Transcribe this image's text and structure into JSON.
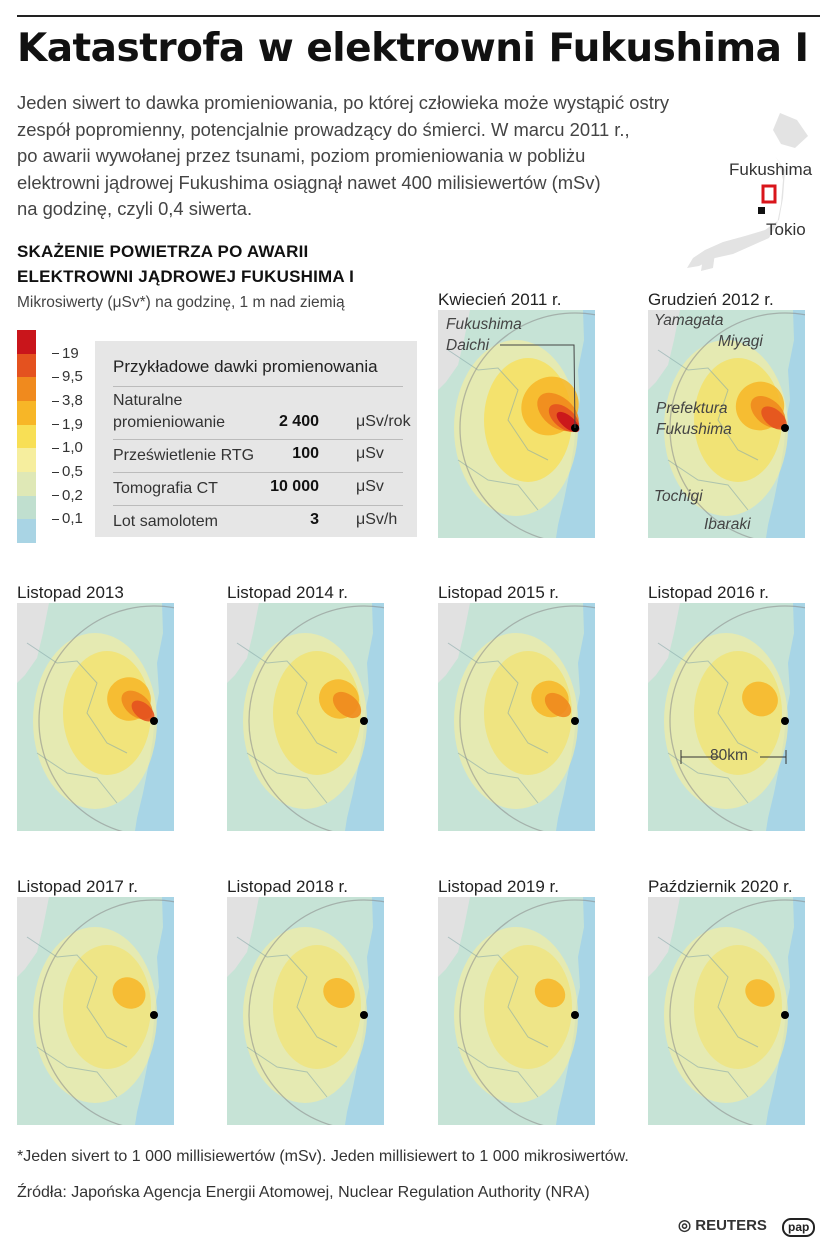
{
  "title": "Katastrofa w elektrowni Fukushima I",
  "intro_lines": [
    "Jeden siwert to dawka promieniowania, po której człowieka może wystąpić ostry",
    "zespół popromienny, potencjalnie prowadzący do śmierci. W marcu 2011 r.,",
    "po awarii wywołanej przez tsunami, poziom promieniowania w pobliżu",
    "elektrowni jądrowej Fukushima osiągnął nawet 400 milisiewertów (mSv)",
    "na godzinę, czyli 0,4 siwerta."
  ],
  "locator": {
    "fukushima": "Fukushima",
    "tokio": "Tokio"
  },
  "subtitle_lines": [
    "SKAŻENIE POWIETRZA PO AWARII",
    "ELEKTROWNI JĄDROWEJ FUKUSHIMA I"
  ],
  "units": "Mikrosiwerty (μSv*) na godzinę, 1 m nad ziemią",
  "legend": {
    "colors": [
      "#c9151b",
      "#e4521f",
      "#f08a1e",
      "#f7b627",
      "#f8df55",
      "#f6ee9e",
      "#dfe8b6",
      "#c0dfcf",
      "#a9d4e4"
    ],
    "labels": [
      "19",
      "9,5",
      "3,8",
      "1,9",
      "1,0",
      "0,5",
      "0,2",
      "0,1"
    ]
  },
  "dose_table": {
    "title": "Przykładowe dawki promienowania",
    "rows": [
      {
        "name": "Naturalne promieniowanie",
        "value": "2 400",
        "unit": "μSv/rok"
      },
      {
        "name": "Prześwietlenie RTG",
        "value": "100",
        "unit": "μSv"
      },
      {
        "name": "Tomografia CT",
        "value": "10 000",
        "unit": "μSv"
      },
      {
        "name": "Lot samolotem",
        "value": "3",
        "unit": "μSv/h"
      }
    ]
  },
  "panels": [
    {
      "title": "Kwiecień 2011 r.",
      "level": 1.0
    },
    {
      "title": "Grudzień 2012 r.",
      "level": 0.75
    },
    {
      "title": "Listopad  2013",
      "level": 0.62
    },
    {
      "title": "Listopad 2014 r.",
      "level": 0.52
    },
    {
      "title": "Listopad 2015 r.",
      "level": 0.45
    },
    {
      "title": "Listopad 2016 r.",
      "level": 0.4
    },
    {
      "title": "Listopad 2017 r.",
      "level": 0.32
    },
    {
      "title": "Listopad 2018 r.",
      "level": 0.28
    },
    {
      "title": "Listopad 2019 r.",
      "level": 0.25
    },
    {
      "title": "Październik 2020 r.",
      "level": 0.22
    }
  ],
  "map_labels": {
    "daichi": "Fukushima\nDaichi",
    "yamagata": "Yamagata",
    "miyagi": "Miyagi",
    "prefektura": "Prefektura\nFukushima",
    "tochigi": "Tochigi",
    "ibaraki": "Ibaraki",
    "scale": "80km"
  },
  "footnote": "*Jeden sivert to 1 000 millisiewertów (mSv). Jeden millisiewert to 1 000 mikrosiwertów.",
  "source": "Źródła: Japońska Agencja Energii Atomowej, Nuclear Regulation Authority (NRA)",
  "credits": {
    "reuters": "REUTERS",
    "pap": "pap"
  },
  "colors": {
    "sea": "#a8d5e6",
    "land_low": "#c6e3d6",
    "grey_land": "#e1e1e1"
  }
}
